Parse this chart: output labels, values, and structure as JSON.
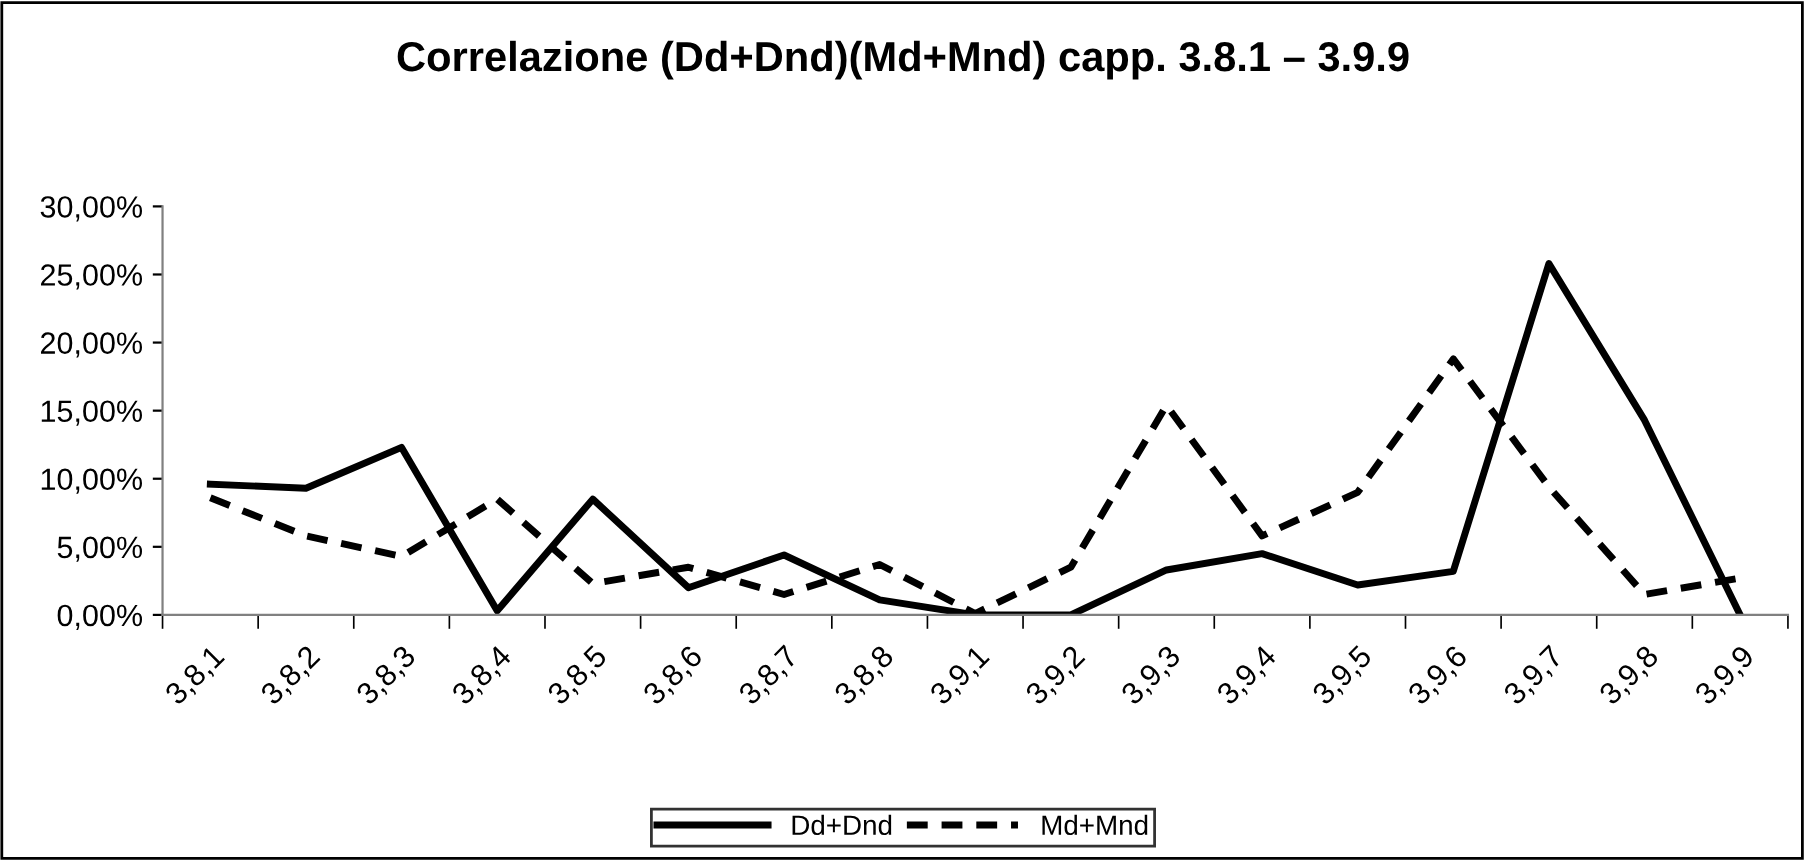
{
  "chart_data": {
    "type": "line",
    "title": "Correlazione (Dd+Dnd)(Md+Mnd) capp. 3.8.1 – 3.9.9",
    "categories": [
      "3,8,1",
      "3,8,2",
      "3,8,3",
      "3,8,4",
      "3,8,5",
      "3,8,6",
      "3,8,7",
      "3,8,8",
      "3,9,1",
      "3,9,2",
      "3,9,3",
      "3,9,4",
      "3,9,5",
      "3,9,6",
      "3,9,7",
      "3,9,8",
      "3,9,9"
    ],
    "series": [
      {
        "name": "Dd+Dnd",
        "color": "#000000",
        "line_style": "solid",
        "values": [
          9.6,
          9.3,
          12.3,
          0.3,
          8.5,
          2.0,
          4.4,
          1.1,
          0,
          0,
          3.3,
          4.5,
          2.2,
          3.2,
          25.8,
          14.3,
          0
        ]
      },
      {
        "name": "Md+Mnd",
        "color": "#000000",
        "line_style": "dashed",
        "values": [
          8.6,
          5.8,
          4.3,
          8.5,
          2.3,
          3.5,
          1.5,
          3.7,
          0.1,
          3.5,
          15.4,
          5.8,
          9.0,
          18.8,
          9.4,
          1.5,
          2.7
        ]
      }
    ],
    "ylim": [
      0,
      30
    ],
    "yticks": [
      {
        "value": 0,
        "label": "0,00%"
      },
      {
        "value": 5,
        "label": "5,00%"
      },
      {
        "value": 10,
        "label": "10,00%"
      },
      {
        "value": 15,
        "label": "15,00%"
      },
      {
        "value": 20,
        "label": "20,00%"
      },
      {
        "value": 25,
        "label": "25,00%"
      },
      {
        "value": 30,
        "label": "30,00%"
      }
    ],
    "grid": false,
    "legend": "bottom",
    "marker": "none"
  }
}
